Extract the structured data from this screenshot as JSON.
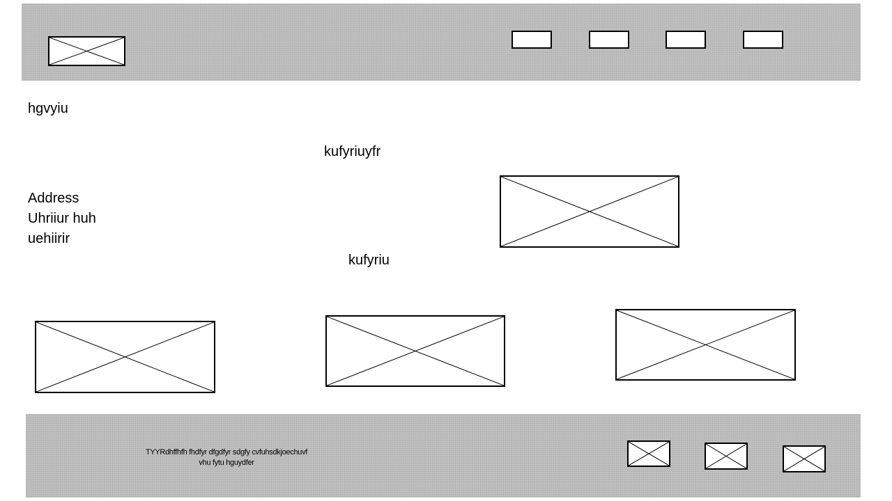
{
  "header": {
    "logo_icon": "image-placeholder-icon",
    "nav_icon": "button-placeholder"
  },
  "main": {
    "label_1": "hgvyiu",
    "heading_1": "kufyriuyfr",
    "address_lines": [
      "Address",
      "Uhriiur huh",
      "uehiirir"
    ],
    "heading_2": "kufyriu",
    "image_icon": "image-placeholder-icon"
  },
  "footer": {
    "text_line_1": "TYYRdhffhfh fhdfyr dfgdfyr sdgfy cvfuhsdkjoechuvf",
    "text_line_2": "vhu fytu hguydfer",
    "social_icon": "image-placeholder-icon"
  },
  "colors": {
    "band": "#bdbdbd",
    "border": "#000000",
    "background": "#ffffff"
  }
}
